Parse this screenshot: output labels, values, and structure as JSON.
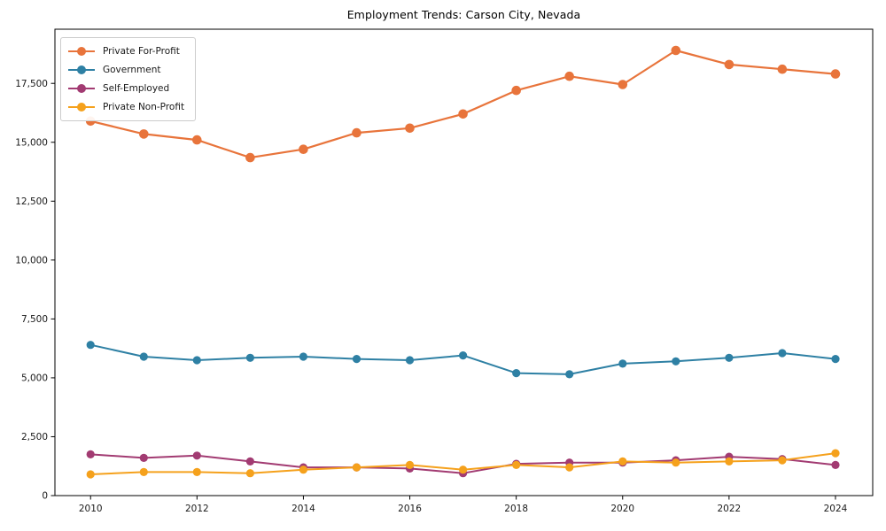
{
  "chart_data": {
    "type": "line",
    "title": "Employment Trends: Carson City, Nevada",
    "xlabel": "",
    "ylabel": "",
    "grid": false,
    "legend_position": "upper-left",
    "background_color": "#ffffff",
    "axis_color": "#000000",
    "tick_label_color": "#1a1a1a",
    "xlim": [
      2009.33,
      2024.7
    ],
    "ylim": [
      0,
      19800
    ],
    "xticks": [
      {
        "value": 2010,
        "label": "2010"
      },
      {
        "value": 2012,
        "label": "2012"
      },
      {
        "value": 2014,
        "label": "2014"
      },
      {
        "value": 2016,
        "label": "2016"
      },
      {
        "value": 2018,
        "label": "2018"
      },
      {
        "value": 2020,
        "label": "2020"
      },
      {
        "value": 2022,
        "label": "2022"
      },
      {
        "value": 2024,
        "label": "2024"
      }
    ],
    "yticks": [
      {
        "value": 0,
        "label": "0"
      },
      {
        "value": 2500,
        "label": "2,500"
      },
      {
        "value": 5000,
        "label": "5,000"
      },
      {
        "value": 7500,
        "label": "7,500"
      },
      {
        "value": 10000,
        "label": "10,000"
      },
      {
        "value": 12500,
        "label": "12,500"
      },
      {
        "value": 15000,
        "label": "15,000"
      },
      {
        "value": 17500,
        "label": "17,500"
      }
    ],
    "x": [
      2010,
      2011,
      2012,
      2013,
      2014,
      2015,
      2016,
      2017,
      2018,
      2019,
      2020,
      2021,
      2022,
      2023,
      2024
    ],
    "series": [
      {
        "name": "Private For-Profit",
        "color": "#e8743b",
        "marker": "circle",
        "marker_size": 5.3,
        "line_width": 2.2,
        "values": [
          15900,
          15350,
          15100,
          14350,
          14700,
          15400,
          15600,
          16200,
          17200,
          17800,
          17450,
          18900,
          18300,
          18100,
          17900
        ]
      },
      {
        "name": "Government",
        "color": "#2e80a4",
        "marker": "circle",
        "marker_size": 4.6,
        "line_width": 2.0,
        "values": [
          6400,
          5900,
          5750,
          5850,
          5900,
          5800,
          5750,
          5950,
          5200,
          5150,
          5600,
          5700,
          5850,
          6050,
          5800
        ]
      },
      {
        "name": "Self-Employed",
        "color": "#a23b72",
        "marker": "circle",
        "marker_size": 4.6,
        "line_width": 2.0,
        "values": [
          1750,
          1600,
          1700,
          1450,
          1200,
          1200,
          1150,
          950,
          1350,
          1400,
          1400,
          1500,
          1650,
          1550,
          1300
        ]
      },
      {
        "name": "Private Non-Profit",
        "color": "#f5a11c",
        "marker": "circle",
        "marker_size": 4.6,
        "line_width": 2.0,
        "values": [
          900,
          1000,
          1000,
          950,
          1100,
          1200,
          1300,
          1100,
          1300,
          1200,
          1450,
          1400,
          1450,
          1500,
          1800
        ]
      }
    ]
  }
}
